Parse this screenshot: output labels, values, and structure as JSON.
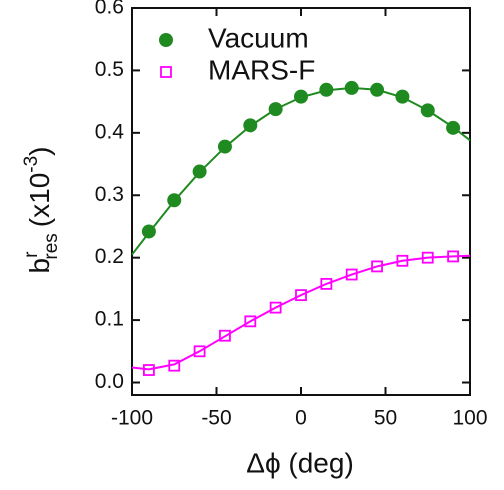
{
  "chart_data": {
    "type": "scatter",
    "xlabel": "Δϕ (deg)",
    "ylabel": {
      "base": "b",
      "sup": "r",
      "sub": "res",
      "unit": "(x10",
      "unit_sup": "-3",
      "unit_end": ")"
    },
    "xlim": [
      -100,
      100
    ],
    "xticks": [
      -100,
      -50,
      0,
      50,
      100
    ],
    "ylim": [
      -0.02,
      0.6
    ],
    "yticks": [
      {
        "value": 0,
        "label": "0.0"
      },
      0.1,
      0.2,
      0.3,
      0.4,
      0.5,
      0.6
    ],
    "series": [
      {
        "name": "Vacuum",
        "color": "#1f8a1f",
        "marker": "circle",
        "x": [
          -90,
          -75,
          -60,
          -45,
          -30,
          -15,
          0,
          15,
          30,
          45,
          60,
          75,
          90
        ],
        "values": [
          0.242,
          0.292,
          0.338,
          0.378,
          0.412,
          0.438,
          0.458,
          0.469,
          0.472,
          0.469,
          0.458,
          0.436,
          0.408
        ],
        "fit_x": [
          -100,
          -90,
          -75,
          -60,
          -45,
          -30,
          -15,
          0,
          15,
          30,
          45,
          60,
          75,
          90,
          100
        ],
        "fit_values": [
          0.205,
          0.24,
          0.291,
          0.337,
          0.377,
          0.411,
          0.438,
          0.457,
          0.468,
          0.472,
          0.469,
          0.457,
          0.436,
          0.409,
          0.388
        ]
      },
      {
        "name": "MARS-F",
        "color": "#ff00ff",
        "marker": "square",
        "x": [
          -90,
          -75,
          -60,
          -45,
          -30,
          -15,
          0,
          15,
          30,
          45,
          60,
          75,
          90
        ],
        "values": [
          0.02,
          0.027,
          0.05,
          0.075,
          0.098,
          0.12,
          0.14,
          0.158,
          0.173,
          0.186,
          0.195,
          0.2,
          0.202
        ],
        "fit_x": [
          -100,
          -90,
          -75,
          -60,
          -45,
          -30,
          -15,
          0,
          15,
          30,
          45,
          60,
          75,
          90,
          100
        ],
        "fit_values": [
          0.024,
          0.021,
          0.029,
          0.05,
          0.074,
          0.098,
          0.12,
          0.14,
          0.158,
          0.173,
          0.186,
          0.195,
          0.2,
          0.202,
          0.203
        ]
      }
    ]
  }
}
